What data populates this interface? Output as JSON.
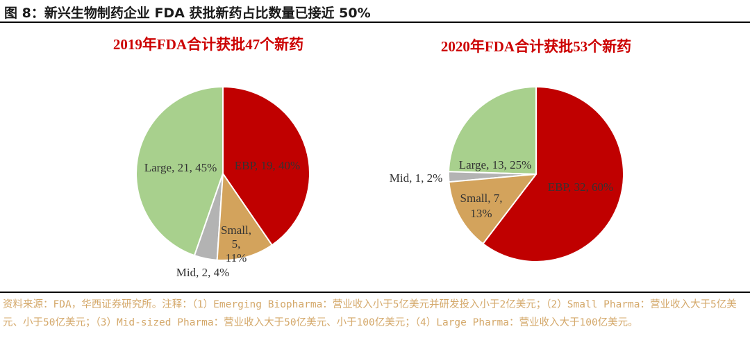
{
  "figure": {
    "title": "图 8：新兴生物制药企业 FDA 获批新药占比数量已接近 50%"
  },
  "chart_data": [
    {
      "type": "pie",
      "title": "2019年FDA合计获批47个新药",
      "slices": [
        {
          "name": "EBP",
          "value": 19,
          "percent": 40,
          "label": "EBP, 19, 40%",
          "color": "#c00000"
        },
        {
          "name": "Small",
          "value": 5,
          "percent": 11,
          "label_lines": [
            "Small,",
            "5,",
            "11%"
          ],
          "color": "#d3a35c"
        },
        {
          "name": "Mid",
          "value": 2,
          "percent": 4,
          "label": "Mid, 2, 4%",
          "color": "#b3b3b3"
        },
        {
          "name": "Large",
          "value": 21,
          "percent": 45,
          "label": "Large, 21, 45%",
          "color": "#a8d08d"
        }
      ]
    },
    {
      "type": "pie",
      "title": "2020年FDA合计获批53个新药",
      "slices": [
        {
          "name": "EBP",
          "value": 32,
          "percent": 60,
          "label": "EBP, 32, 60%",
          "color": "#c00000"
        },
        {
          "name": "Small",
          "value": 7,
          "percent": 13,
          "label_lines": [
            "Small, 7,",
            "13%"
          ],
          "color": "#d3a35c"
        },
        {
          "name": "Mid",
          "value": 1,
          "percent": 2,
          "label": "Mid, 1, 2%",
          "color": "#b3b3b3"
        },
        {
          "name": "Large",
          "value": 13,
          "percent": 25,
          "label": "Large, 13, 25%",
          "color": "#a8d08d"
        }
      ]
    }
  ],
  "source": {
    "text": "资料来源：FDA，华西证券研究所。注释：（1）Emerging Biopharma：营业收入小于5亿美元并研发投入小于2亿美元；（2）Small Pharma：营业收入大于5亿美元、小于50亿美元；（3）Mid-sized Pharma：营业收入大于50亿美元、小于100亿美元；（4）Large Pharma：营业收入大于100亿美元。"
  }
}
